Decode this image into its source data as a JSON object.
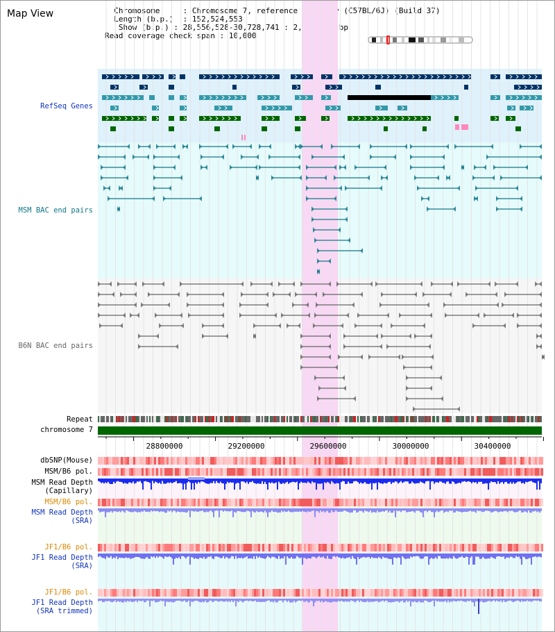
{
  "title": "Map View",
  "header": {
    "chromosome_label": "Chromosome",
    "chromosome_value": "Chromosome 7, reference assembly (C57BL/6J) (Build 37)",
    "length_label": "Length (b.p.)",
    "length_value": "152,524,553",
    "show_label": "Show (b.p.)",
    "show_value": "28,556,528-30,728,741 : 2,172,214 bp",
    "coverage_label": "Read coverage check span",
    "coverage_value": "10,000"
  },
  "tracks": {
    "refseq": "RefSeq Genes",
    "msm_bac": "MSM BAC end pairs",
    "b6n_bac": "B6N BAC end pairs",
    "repeat": "Repeat",
    "chromosome": "chromosome 7",
    "dbsnp": "dbSNP(Mouse)",
    "msm_b6_pol": "MSM/B6 pol.",
    "msm_depth_cap_1": "MSM Read Depth",
    "msm_depth_cap_2": "(Capillary)",
    "msm_b6_pol_2": "MSM/B6 pol.",
    "msm_depth_sra_1": "MSM Read Depth",
    "msm_depth_sra_2": "(SRA)",
    "jf1_b6_pol": "JF1/B6 pol.",
    "jf1_depth_1": "JF1 Read Depth",
    "jf1_depth_2": "(SRA)",
    "jf1_b6_pol_2": "JF1/B6 pol.",
    "jf1_trim_1": "JF1 Read Depth",
    "jf1_trim_2": "(SRA trimmed)"
  },
  "axis": {
    "ticks": [
      "28800000",
      "29200000",
      "29600000",
      "30000000",
      "30400000"
    ],
    "start": 28556528,
    "end": 30728741
  },
  "colors": {
    "refseq_bg": "#dff1fb",
    "msm_bg": "#e6fbfb",
    "b6n_bg": "#f6f6f6",
    "highlight": "#f8d8f4",
    "chromosome": "#006600",
    "gene_dark": "#003366",
    "gene_mid": "#3399aa",
    "gene_green": "#006600",
    "depth_blue": "#2233ee"
  }
}
